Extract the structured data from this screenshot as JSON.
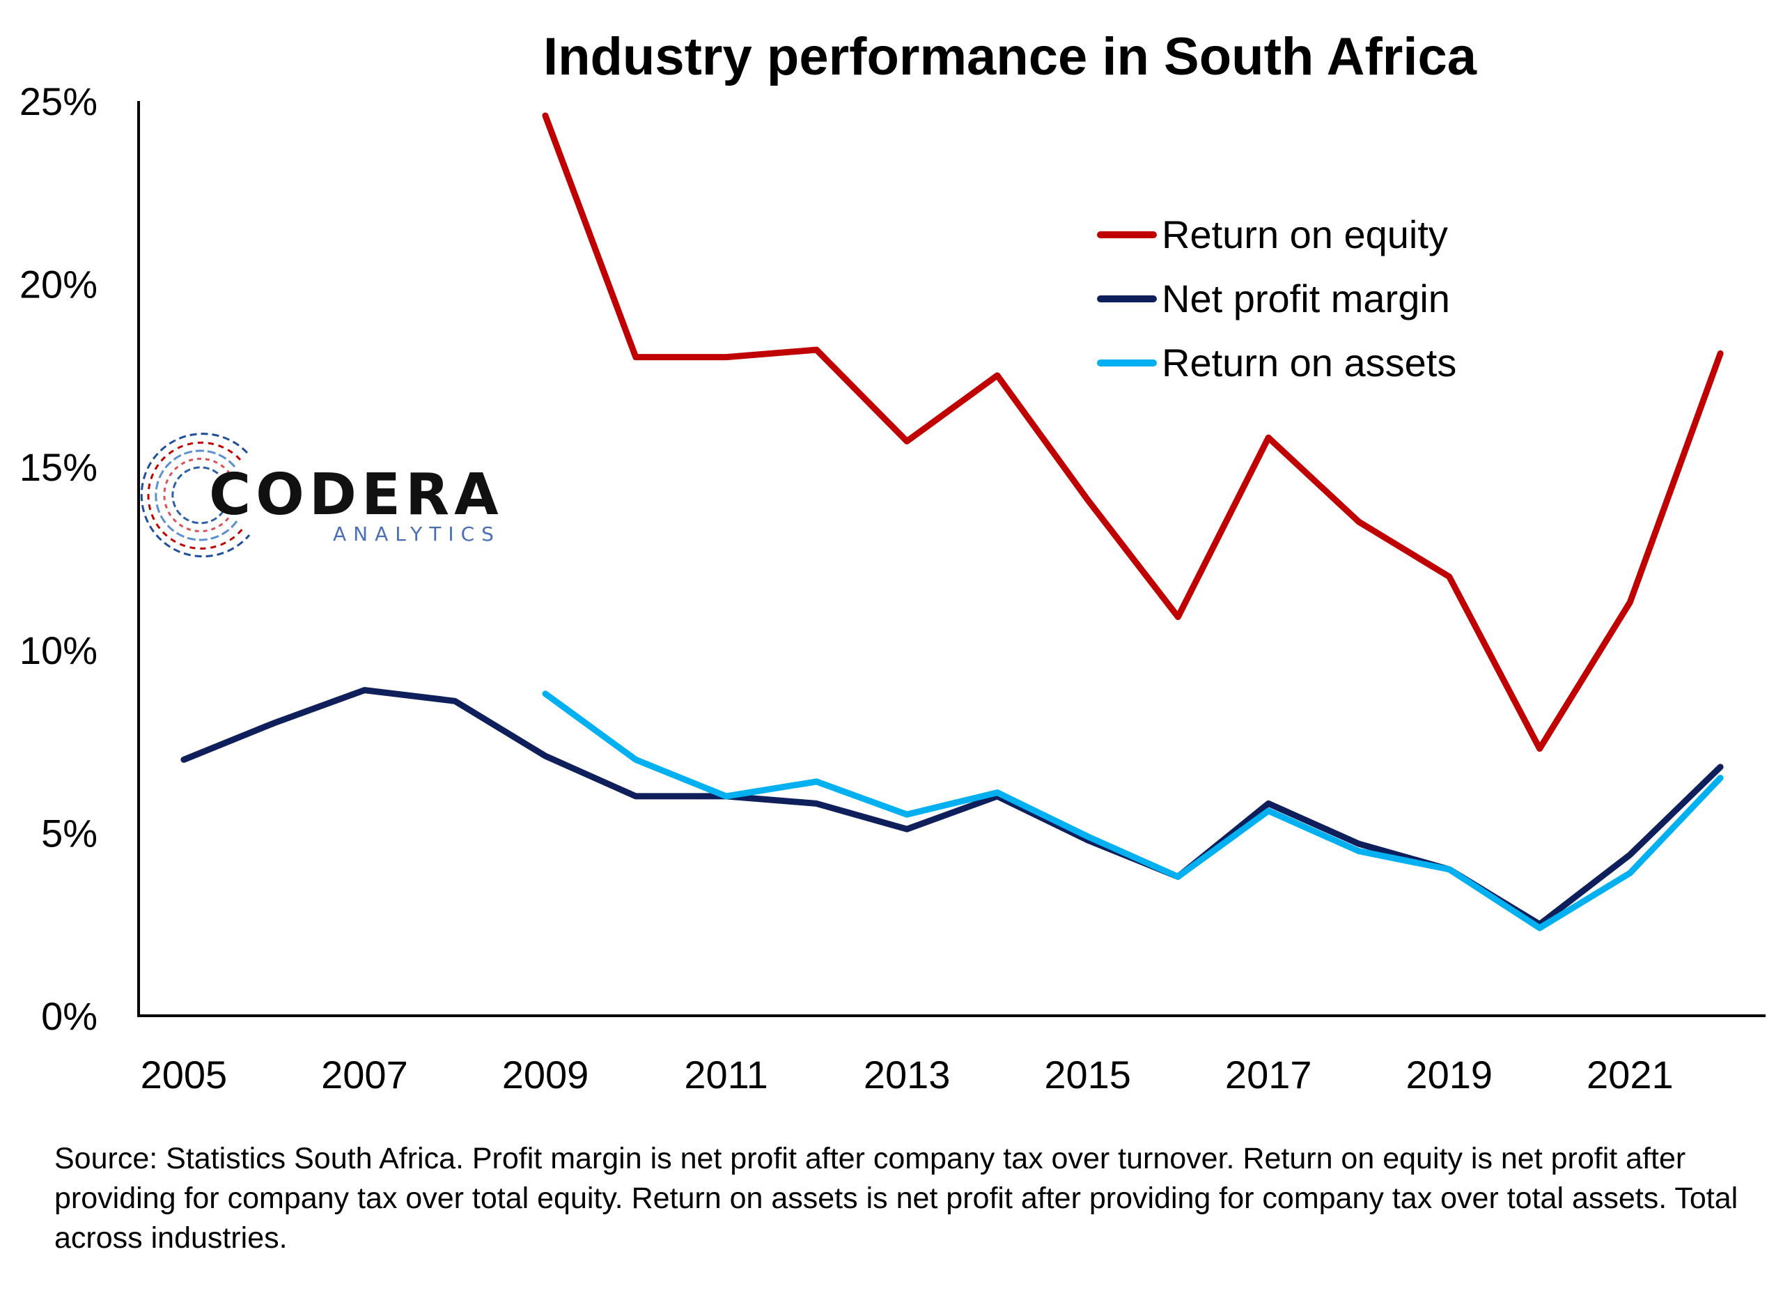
{
  "chart_data": {
    "type": "line",
    "title": "Industry performance in South Africa",
    "xlabel": "",
    "ylabel": "",
    "x": [
      2005,
      2006,
      2007,
      2008,
      2009,
      2010,
      2011,
      2012,
      2013,
      2014,
      2015,
      2016,
      2017,
      2018,
      2019,
      2020,
      2021,
      2022
    ],
    "x_ticks": [
      "2005",
      "2007",
      "2009",
      "2011",
      "2013",
      "2015",
      "2017",
      "2019",
      "2021"
    ],
    "y_ticks": [
      "0%",
      "5%",
      "10%",
      "15%",
      "20%",
      "25%"
    ],
    "xlim": [
      2004.5,
      2022.5
    ],
    "ylim": [
      0,
      25
    ],
    "grid": false,
    "legend_position": "top-right",
    "series": [
      {
        "name": "Return on equity",
        "color": "#c00000",
        "values": [
          null,
          null,
          null,
          null,
          24.6,
          18.0,
          18.0,
          18.2,
          15.7,
          17.5,
          14.1,
          10.9,
          15.8,
          13.5,
          12.0,
          7.3,
          11.3,
          18.1
        ]
      },
      {
        "name": "Net profit margin",
        "color": "#0f1f5c",
        "values": [
          7.0,
          8.0,
          8.9,
          8.6,
          7.1,
          6.0,
          6.0,
          5.8,
          5.1,
          6.0,
          4.8,
          3.8,
          5.8,
          4.7,
          4.0,
          2.5,
          4.4,
          6.8
        ]
      },
      {
        "name": "Return on assets",
        "color": "#00b0f0",
        "values": [
          null,
          null,
          null,
          null,
          8.8,
          7.0,
          6.0,
          6.4,
          5.5,
          6.1,
          4.9,
          3.8,
          5.6,
          4.5,
          4.0,
          2.4,
          3.9,
          6.5
        ]
      }
    ]
  },
  "logo": {
    "name": "CODERA",
    "sub": "ANALYTICS"
  },
  "source_note": "Source: Statistics South Africa. Profit margin is net profit after company tax over turnover. Return on equity is net profit after providing for company tax over total equity. Return on assets is net profit after providing for company tax over total assets. Total across industries."
}
